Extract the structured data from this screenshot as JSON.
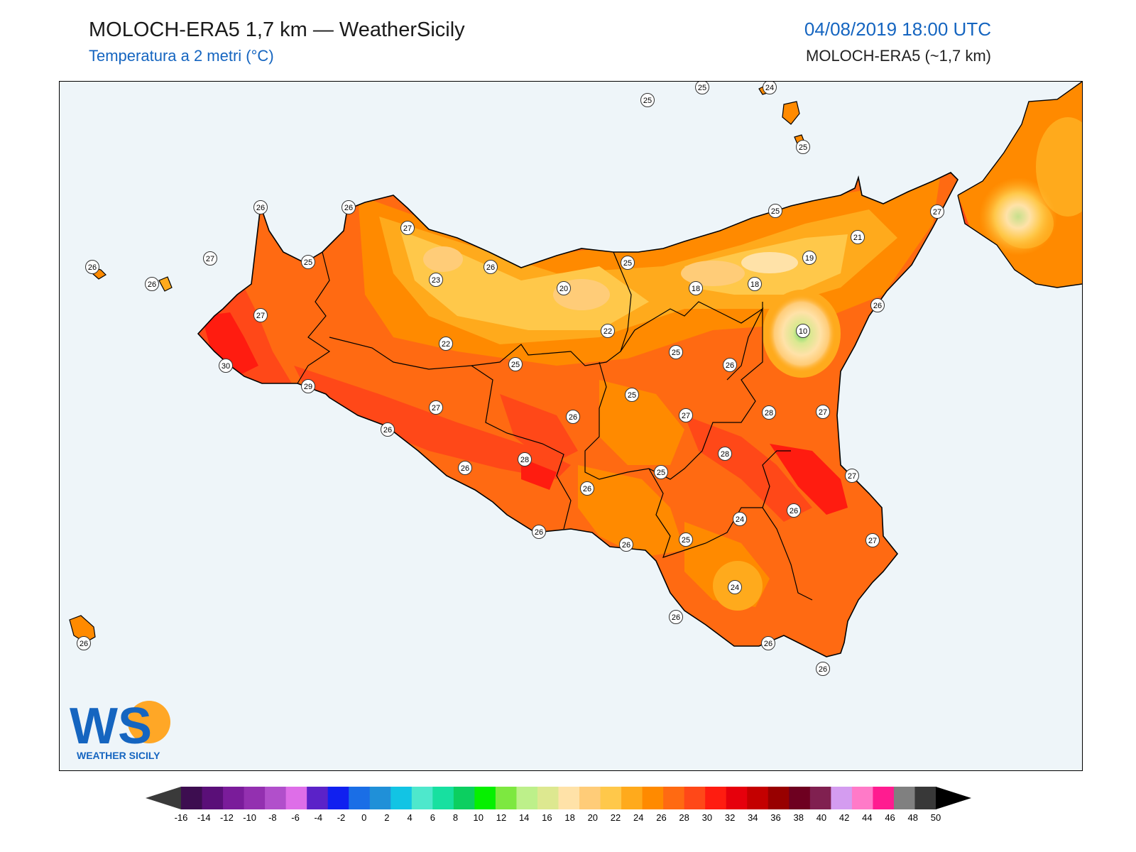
{
  "header": {
    "title": "MOLOCH-ERA5 1,7 km — WeatherSicily",
    "subtitle": "Temperatura a 2 metri (°C)",
    "datetime": "04/08/2019 18:00 UTC",
    "model_label": "MOLOCH-ERA5 (~1,7 km)"
  },
  "logo": {
    "letters": "WS",
    "caption": "WEATHER SICILY"
  },
  "colorbar": {
    "ticks": [
      "-16",
      "-14",
      "-12",
      "-10",
      "-8",
      "-6",
      "-4",
      "-2",
      "0",
      "2",
      "4",
      "6",
      "8",
      "10",
      "12",
      "14",
      "16",
      "18",
      "20",
      "22",
      "24",
      "26",
      "28",
      "30",
      "32",
      "34",
      "36",
      "38",
      "40",
      "42",
      "44",
      "46",
      "48",
      "50"
    ],
    "colors": [
      "#3d0d50",
      "#5a0f78",
      "#7a1c9a",
      "#9330b0",
      "#b14fcb",
      "#de6ee8",
      "#5b22c8",
      "#1020f0",
      "#1a6ee6",
      "#2090d8",
      "#12c4e4",
      "#4ee8cc",
      "#17e0a0",
      "#0ccf60",
      "#06f000",
      "#7de840",
      "#bdf08a",
      "#dde890",
      "#ffe2a8",
      "#ffcc78",
      "#ffc84a",
      "#ffaa1c",
      "#ff8a00",
      "#ff6a12",
      "#ff4818",
      "#ff1c10",
      "#e6000c",
      "#c40000",
      "#980000",
      "#6e0020",
      "#802050",
      "#d49cf0",
      "#ff7ac8",
      "#ff1c90",
      "#808080",
      "#383838"
    ],
    "under_color": "#3a3a3a",
    "over_color": "#000000",
    "units": "°C"
  },
  "map_stations": [
    {
      "v": "25",
      "color": "#ffffff"
    },
    {
      "v": "25",
      "color": "#ffffff"
    },
    {
      "v": "24",
      "color": "#ffffff"
    },
    {
      "v": "25",
      "color": "#ffffff"
    },
    {
      "v": "26",
      "color": "#ffffff"
    },
    {
      "v": "26",
      "color": "#ffffff"
    },
    {
      "v": "27",
      "color": "#ffffff"
    },
    {
      "v": "25",
      "color": "#ffffff"
    },
    {
      "v": "27",
      "color": "#ffffff"
    },
    {
      "v": "21",
      "color": "#ffffff"
    },
    {
      "v": "19",
      "color": "#ffffff"
    },
    {
      "v": "26",
      "color": "#ffffff"
    },
    {
      "v": "26",
      "color": "#ffffff"
    },
    {
      "v": "27",
      "color": "#ffffff"
    },
    {
      "v": "25",
      "color": "#ffffff"
    },
    {
      "v": "23",
      "color": "#ffffff"
    },
    {
      "v": "26",
      "color": "#ffffff"
    },
    {
      "v": "25",
      "color": "#ffffff"
    },
    {
      "v": "20",
      "color": "#ffffff"
    },
    {
      "v": "18",
      "color": "#ffffff"
    },
    {
      "v": "18",
      "color": "#ffffff"
    },
    {
      "v": "26",
      "color": "#ffffff"
    },
    {
      "v": "27",
      "color": "#ffffff"
    },
    {
      "v": "22",
      "color": "#ffffff"
    },
    {
      "v": "10",
      "color": "#ffffff"
    },
    {
      "v": "22",
      "color": "#ffffff"
    },
    {
      "v": "30",
      "color": "#ffffff"
    },
    {
      "v": "25",
      "color": "#ffffff"
    },
    {
      "v": "25",
      "color": "#ffffff"
    },
    {
      "v": "26",
      "color": "#ffffff"
    },
    {
      "v": "29",
      "color": "#ffffff"
    },
    {
      "v": "25",
      "color": "#ffffff"
    },
    {
      "v": "27",
      "color": "#ffffff"
    },
    {
      "v": "27",
      "color": "#ffffff"
    },
    {
      "v": "28",
      "color": "#ffffff"
    },
    {
      "v": "27",
      "color": "#ffffff"
    },
    {
      "v": "26",
      "color": "#ffffff"
    },
    {
      "v": "26",
      "color": "#ffffff"
    },
    {
      "v": "28",
      "color": "#ffffff"
    },
    {
      "v": "28",
      "color": "#ffffff"
    },
    {
      "v": "26",
      "color": "#ffffff"
    },
    {
      "v": "25",
      "color": "#ffffff"
    },
    {
      "v": "27",
      "color": "#ffffff"
    },
    {
      "v": "26",
      "color": "#ffffff"
    },
    {
      "v": "26",
      "color": "#ffffff"
    },
    {
      "v": "24",
      "color": "#ffffff"
    },
    {
      "v": "26",
      "color": "#ffffff"
    },
    {
      "v": "25",
      "color": "#ffffff"
    },
    {
      "v": "27",
      "color": "#ffffff"
    },
    {
      "v": "26",
      "color": "#ffffff"
    },
    {
      "v": "24",
      "color": "#ffffff"
    },
    {
      "v": "26",
      "color": "#ffffff"
    },
    {
      "v": "26",
      "color": "#ffffff"
    },
    {
      "v": "26",
      "color": "#ffffff"
    },
    {
      "v": "26",
      "color": "#ffffff"
    }
  ]
}
